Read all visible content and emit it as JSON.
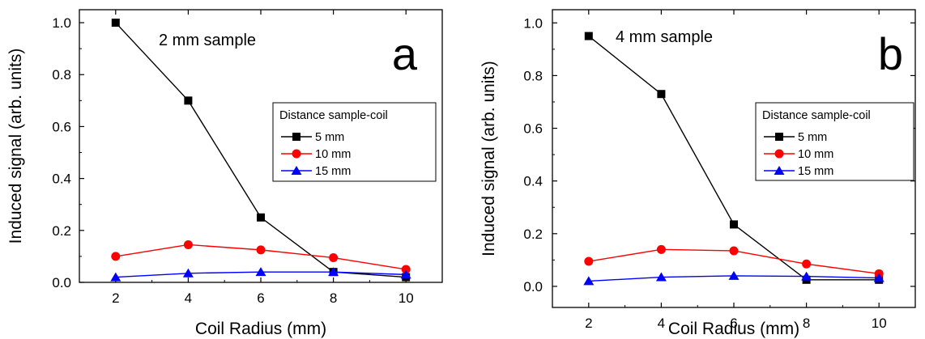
{
  "chart_data": [
    {
      "type": "line",
      "panel_letter": "a",
      "annotation": "2 mm sample",
      "xlabel": "Coil Radius (mm)",
      "ylabel": "Induced signal (arb. units)",
      "xlim": [
        1,
        11
      ],
      "ylim": [
        0,
        1.05
      ],
      "x_ticks": [
        "2",
        "4",
        "6",
        "8",
        "10"
      ],
      "y_ticks": [
        "0.0",
        "0.2",
        "0.4",
        "0.6",
        "0.8",
        "1.0"
      ],
      "legend_title": "Distance sample-coil",
      "legend_position": "right",
      "x": [
        2,
        4,
        6,
        8,
        10
      ],
      "series": [
        {
          "name": "5 mm",
          "color": "#000000",
          "marker": "square",
          "values": [
            1.0,
            0.7,
            0.25,
            0.04,
            0.02
          ]
        },
        {
          "name": "10 mm",
          "color": "#ff0000",
          "marker": "circle",
          "values": [
            0.1,
            0.145,
            0.125,
            0.095,
            0.05
          ]
        },
        {
          "name": "15 mm",
          "color": "#0000ff",
          "marker": "triangle",
          "values": [
            0.02,
            0.035,
            0.04,
            0.04,
            0.03
          ]
        }
      ]
    },
    {
      "type": "line",
      "panel_letter": "b",
      "annotation": "4 mm sample",
      "xlabel": "Coil Radius (mm)",
      "ylabel": "Induced signal (arb. units)",
      "xlim": [
        1,
        11
      ],
      "ylim": [
        -0.08,
        1.05
      ],
      "x_ticks": [
        "2",
        "4",
        "6",
        "8",
        "10"
      ],
      "y_ticks": [
        "0.0",
        "0.2",
        "0.4",
        "0.6",
        "0.8",
        "1.0"
      ],
      "legend_title": "Distance sample-coil",
      "legend_position": "right",
      "x": [
        2,
        4,
        6,
        8,
        10
      ],
      "series": [
        {
          "name": "5 mm",
          "color": "#000000",
          "marker": "square",
          "values": [
            0.95,
            0.73,
            0.235,
            0.025,
            0.025
          ]
        },
        {
          "name": "10 mm",
          "color": "#ff0000",
          "marker": "circle",
          "values": [
            0.095,
            0.14,
            0.135,
            0.085,
            0.048
          ]
        },
        {
          "name": "15 mm",
          "color": "#0000ff",
          "marker": "triangle",
          "values": [
            0.02,
            0.035,
            0.04,
            0.038,
            0.032
          ]
        }
      ]
    }
  ]
}
